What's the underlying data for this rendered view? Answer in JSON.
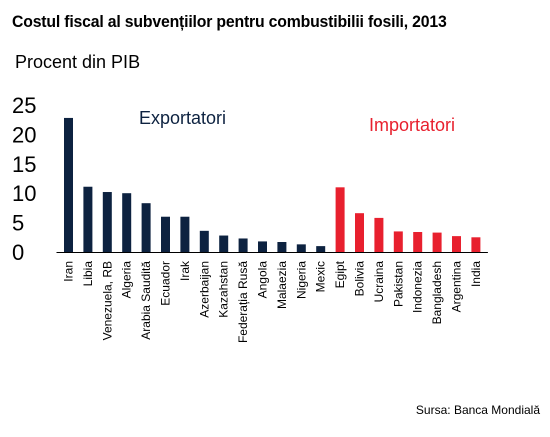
{
  "chart_data": {
    "type": "bar",
    "title": "Costul fiscal al subvențiilor pentru combustibilii fosili, 2013",
    "ylabel": "Procent din PIB",
    "xlabel": "",
    "ylim": [
      0,
      25
    ],
    "yticks": [
      0,
      5,
      10,
      15,
      20,
      25
    ],
    "grid": false,
    "categories": [
      "Iran",
      "Libia",
      "Venezuela, RB",
      "Algeria",
      "Arabia Saudită",
      "Ecuador",
      "Irak",
      "Azerbaijan",
      "Kazahstan",
      "Federația Rusă",
      "Angola",
      "Malaezia",
      "Nigeria",
      "Mexic",
      "Egipt",
      "Bolivia",
      "Ucraina",
      "Pakistan",
      "Indonezia",
      "Bangladesh",
      "Argentina",
      "India"
    ],
    "values": [
      22.8,
      11.1,
      10.2,
      10.0,
      8.3,
      6.0,
      6.0,
      3.6,
      2.8,
      2.3,
      1.8,
      1.7,
      1.3,
      1.0,
      11.0,
      6.6,
      5.8,
      3.5,
      3.4,
      3.3,
      2.7,
      2.5
    ],
    "groups": [
      {
        "label": "Exportatori",
        "color": "#0d2240",
        "count": 14
      },
      {
        "label": "Importatori",
        "color": "#e8202e",
        "count": 8
      }
    ]
  },
  "source": "Sursa: Banca Mondială"
}
